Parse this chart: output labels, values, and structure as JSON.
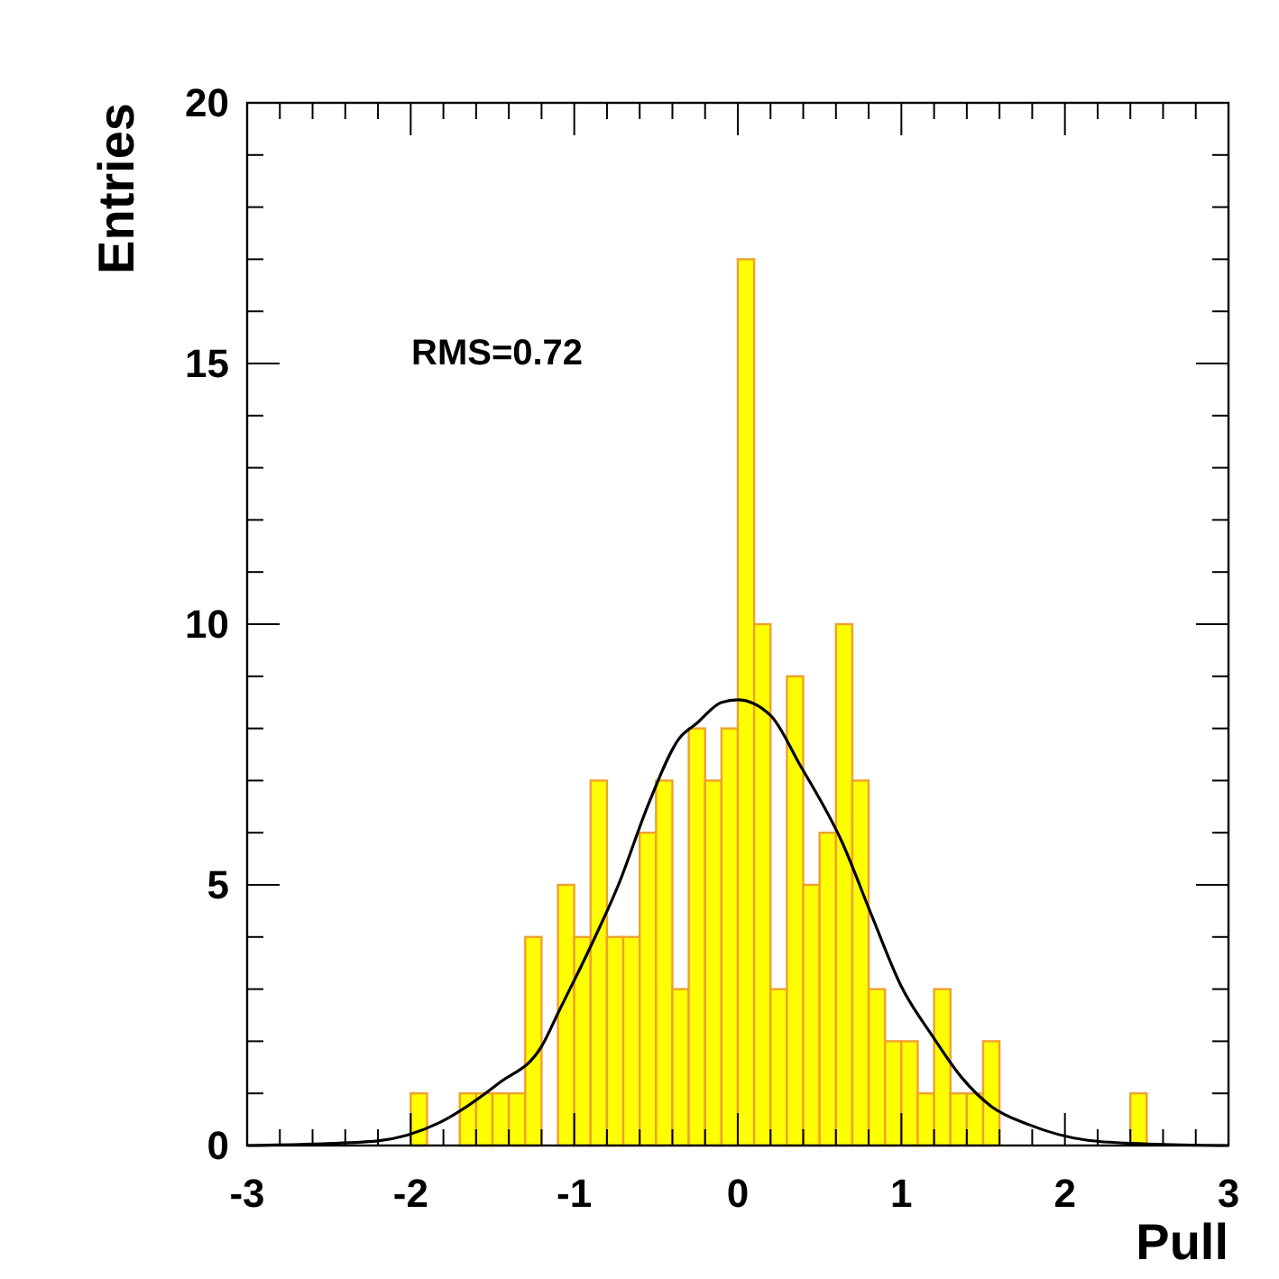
{
  "chart_data": {
    "type": "histogram",
    "xlabel": "Pull",
    "ylabel": "Entries",
    "annotations": [
      "RMS=0.72"
    ],
    "xlim": [
      -3,
      3
    ],
    "ylim": [
      0,
      20
    ],
    "xticks": [
      -3,
      {
        "value": -2.8,
        "label": null
      },
      {
        "value": -2.6,
        "label": null
      },
      {
        "value": -2.4,
        "label": null
      },
      {
        "value": -2.2,
        "label": null
      },
      -2,
      {
        "value": -1.8,
        "label": null
      },
      {
        "value": -1.6,
        "label": null
      },
      {
        "value": -1.4,
        "label": null
      },
      {
        "value": -1.2,
        "label": null
      },
      -1,
      {
        "value": -0.8,
        "label": null
      },
      {
        "value": -0.6,
        "label": null
      },
      {
        "value": -0.4,
        "label": null
      },
      {
        "value": -0.2,
        "label": null
      },
      0,
      {
        "value": 0.2,
        "label": null
      },
      {
        "value": 0.4,
        "label": null
      },
      {
        "value": 0.6,
        "label": null
      },
      {
        "value": 0.8,
        "label": null
      },
      1,
      {
        "value": 1.2,
        "label": null
      },
      {
        "value": 1.4,
        "label": null
      },
      {
        "value": 1.6,
        "label": null
      },
      {
        "value": 1.8,
        "label": null
      },
      2,
      {
        "value": 2.2,
        "label": null
      },
      {
        "value": 2.4,
        "label": null
      },
      {
        "value": 2.6,
        "label": null
      },
      {
        "value": 2.8,
        "label": null
      },
      3
    ],
    "yticks": [
      0,
      {
        "value": 1,
        "label": null
      },
      {
        "value": 2,
        "label": null
      },
      {
        "value": 3,
        "label": null
      },
      {
        "value": 4,
        "label": null
      },
      5,
      {
        "value": 6,
        "label": null
      },
      {
        "value": 7,
        "label": null
      },
      {
        "value": 8,
        "label": null
      },
      {
        "value": 9,
        "label": null
      },
      10,
      {
        "value": 11,
        "label": null
      },
      {
        "value": 12,
        "label": null
      },
      {
        "value": 13,
        "label": null
      },
      {
        "value": 14,
        "label": null
      },
      15,
      {
        "value": 16,
        "label": null
      },
      {
        "value": 17,
        "label": null
      },
      {
        "value": 18,
        "label": null
      },
      {
        "value": 19,
        "label": null
      },
      20
    ],
    "grid": false,
    "series": [
      {
        "color": "#ffff00",
        "bins": [
          -3,
          -2.9,
          -2.8,
          -2.7,
          -2.6,
          -2.5,
          -2.4,
          -2.3,
          -2.2,
          -2.1,
          -2,
          -1.9,
          -1.8,
          -1.7,
          -1.6,
          -1.5,
          -1.4,
          -1.3,
          -1.2,
          -1.1,
          -1,
          -0.9,
          -0.8,
          -0.7,
          -0.6,
          -0.5,
          -0.4,
          -0.3,
          -0.2,
          -0.1,
          0,
          0.1,
          0.2,
          0.3,
          0.4,
          0.5,
          0.6,
          0.7,
          0.8,
          0.9,
          1,
          1.1,
          1.2,
          1.3,
          1.4,
          1.5,
          1.6,
          1.7,
          1.8,
          1.9,
          2,
          2.1,
          2.2,
          2.3,
          2.4,
          2.5,
          2.6,
          2.7,
          2.8,
          2.9,
          3
        ],
        "values": [
          0,
          0,
          0,
          0,
          0,
          0,
          0,
          0,
          0,
          0,
          1,
          0,
          0,
          1,
          1,
          1,
          1,
          4,
          0,
          5,
          4,
          7,
          4,
          4,
          6,
          7,
          3,
          8,
          7,
          8,
          17,
          10,
          3,
          9,
          5,
          6,
          10,
          7,
          3,
          2,
          2,
          1,
          3,
          1,
          1,
          2,
          0,
          0,
          0,
          0,
          0,
          0,
          0,
          0,
          1,
          0,
          0,
          0,
          0,
          0
        ]
      },
      {
        "type": "line",
        "color": "#000000",
        "marker": "none",
        "x": [
          -3,
          -2.6,
          -2.2,
          -1.83,
          -1.46,
          -1.2,
          -1.09,
          -0.91,
          -0.73,
          -0.54,
          -0.36,
          -0.25,
          -0.1,
          0,
          0.2,
          0.38,
          0.64,
          0.82,
          1,
          1.19,
          1.37,
          1.55,
          1.78,
          2.14,
          2.5,
          3
        ],
        "values": [
          0,
          0.03,
          0.09,
          0.43,
          1.2,
          1.9,
          2.6,
          3.75,
          5,
          6.6,
          7.8,
          8.1,
          8.5,
          8.55,
          8.25,
          7.3,
          5.8,
          4.4,
          3.05,
          2.1,
          1.3,
          0.75,
          0.4,
          0.1,
          0.03,
          0
        ]
      }
    ]
  }
}
